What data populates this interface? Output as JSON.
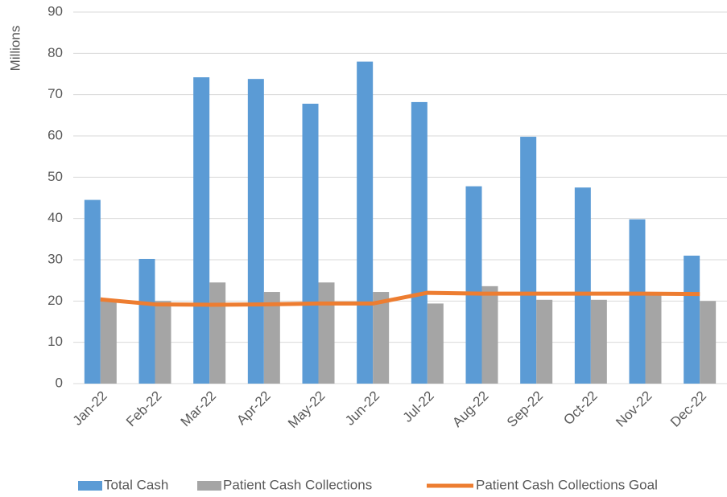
{
  "chart_data": {
    "type": "bar",
    "y_label": "Millions",
    "categories": [
      "Jan-22",
      "Feb-22",
      "Mar-22",
      "Apr-22",
      "May-22",
      "Jun-22",
      "Jul-22",
      "Aug-22",
      "Sep-22",
      "Oct-22",
      "Nov-22",
      "Dec-22"
    ],
    "series": [
      {
        "name": "Total Cash",
        "type": "bar",
        "color": "#5b9bd5",
        "values": [
          44.5,
          30.2,
          74.2,
          73.8,
          67.8,
          78,
          68.2,
          47.8,
          59.8,
          47.5,
          39.8,
          31
        ]
      },
      {
        "name": "Patient Cash Collections",
        "type": "bar",
        "color": "#a5a5a5",
        "values": [
          20.4,
          20,
          24.5,
          22.2,
          24.5,
          22.2,
          19.4,
          23.6,
          20.3,
          20.3,
          21.8,
          20
        ]
      },
      {
        "name": "Patient Cash Collections Goal",
        "type": "line",
        "color": "#ed7d31",
        "values": [
          20.4,
          19.2,
          19.1,
          19.2,
          19.4,
          19.4,
          22,
          21.8,
          21.8,
          21.8,
          21.8,
          21.7
        ]
      }
    ],
    "ylim": [
      0,
      90
    ],
    "yticks": [
      0,
      10,
      20,
      30,
      40,
      50,
      60,
      70,
      80,
      90
    ],
    "grid": true,
    "legend": "bottom"
  }
}
